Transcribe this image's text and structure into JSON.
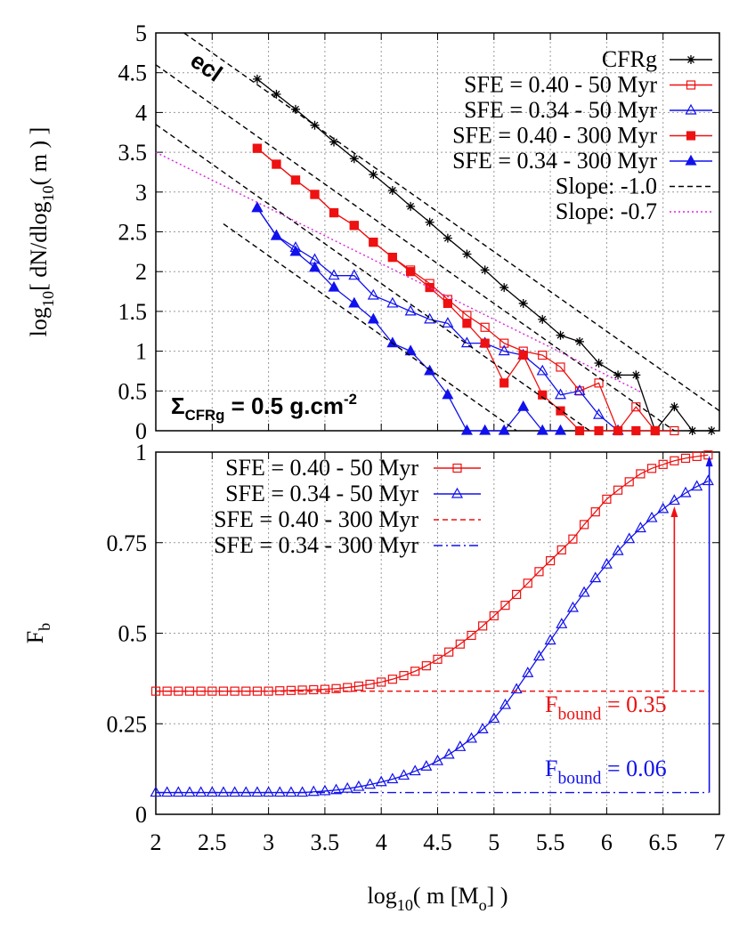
{
  "chart_data": [
    {
      "type": "line",
      "ylabel": [
        {
          "text": "log"
        },
        {
          "text": "10",
          "shift": "sub"
        },
        {
          "text": "[ dN/dlog"
        },
        {
          "text": "10",
          "shift": "sub"
        },
        {
          "text": "( m ) ]"
        }
      ],
      "xlim": [
        2,
        7
      ],
      "xticks": [
        2,
        2.5,
        3,
        3.5,
        4,
        4.5,
        5,
        5.5,
        6,
        6.5,
        7
      ],
      "ylim": [
        0,
        5
      ],
      "yticks": [
        0,
        0.5,
        1,
        1.5,
        2,
        2.5,
        3,
        3.5,
        4,
        4.5,
        5
      ],
      "grid": true,
      "legend": "upper right",
      "annotations": [
        {
          "parts": [
            {
              "text": "ecl"
            }
          ],
          "color": "#000000"
        },
        {
          "parts": [
            {
              "text": "Σ"
            },
            {
              "text": "CFRg",
              "shift": "sub"
            },
            {
              "text": " = 0.5 g.cm"
            },
            {
              "text": "-2",
              "shift": "super"
            }
          ],
          "color": "#000000"
        }
      ],
      "series": [
        {
          "name": "CFRg",
          "color": "#000000",
          "marker": "star",
          "dash": "solid",
          "x": [
            2.9,
            3.07,
            3.24,
            3.41,
            3.58,
            3.76,
            3.93,
            4.1,
            4.26,
            4.43,
            4.59,
            4.76,
            4.92,
            5.09,
            5.26,
            5.43,
            5.59,
            5.76,
            5.93,
            6.1,
            6.26,
            6.43,
            6.6,
            6.76,
            6.93
          ],
          "values": [
            4.42,
            4.23,
            4.04,
            3.84,
            3.63,
            3.42,
            3.22,
            3.02,
            2.82,
            2.62,
            2.42,
            2.22,
            2.02,
            1.8,
            1.6,
            1.4,
            1.2,
            1.12,
            0.85,
            0.7,
            0.7,
            0,
            0.3,
            0,
            0
          ]
        },
        {
          "name": "SFE = 0.40 - 50 Myr",
          "color": "#ee1111",
          "marker": "square-open",
          "dash": "solid",
          "x": [
            2.9,
            3.07,
            3.24,
            3.41,
            3.58,
            3.76,
            3.93,
            4.1,
            4.26,
            4.43,
            4.59,
            4.76,
            4.92,
            5.09,
            5.26,
            5.43,
            5.59,
            5.76,
            5.93,
            6.1,
            6.26,
            6.43,
            6.6
          ],
          "values": [
            3.55,
            3.35,
            3.15,
            2.97,
            2.74,
            2.58,
            2.37,
            2.18,
            2.02,
            1.85,
            1.65,
            1.45,
            1.3,
            1.1,
            1.0,
            0.95,
            0.8,
            0.5,
            0.6,
            0,
            0.3,
            0,
            0
          ]
        },
        {
          "name": "SFE = 0.34 - 50 Myr",
          "color": "#1111ee",
          "marker": "triangle-open",
          "dash": "solid",
          "x": [
            2.9,
            3.07,
            3.24,
            3.41,
            3.58,
            3.76,
            3.93,
            4.1,
            4.26,
            4.43,
            4.59,
            4.76,
            4.92,
            5.09,
            5.26,
            5.43,
            5.59,
            5.76,
            5.93,
            6.1
          ],
          "values": [
            2.8,
            2.45,
            2.3,
            2.15,
            1.95,
            1.95,
            1.7,
            1.6,
            1.5,
            1.4,
            1.35,
            1.1,
            1.1,
            1.0,
            0.95,
            0.75,
            0.45,
            0.5,
            0.2,
            0
          ]
        },
        {
          "name": "SFE = 0.40 - 300 Myr",
          "color": "#ee1111",
          "marker": "square",
          "dash": "solid",
          "x": [
            2.9,
            3.07,
            3.24,
            3.41,
            3.58,
            3.76,
            3.93,
            4.1,
            4.26,
            4.43,
            4.59,
            4.76,
            4.92,
            5.09,
            5.26,
            5.43,
            5.59,
            5.76,
            5.93,
            6.1,
            6.26,
            6.43
          ],
          "values": [
            3.55,
            3.35,
            3.15,
            2.97,
            2.74,
            2.58,
            2.37,
            2.18,
            2.0,
            1.8,
            1.6,
            1.35,
            1.1,
            0.6,
            0.95,
            0.45,
            0.25,
            0,
            0,
            0,
            0,
            0
          ]
        },
        {
          "name": "SFE = 0.34 - 300 Myr",
          "color": "#1111ee",
          "marker": "triangle",
          "dash": "solid",
          "x": [
            2.9,
            3.07,
            3.24,
            3.41,
            3.58,
            3.76,
            3.93,
            4.1,
            4.26,
            4.43,
            4.59,
            4.76,
            4.92,
            5.09,
            5.26,
            5.43,
            5.59
          ],
          "values": [
            2.8,
            2.45,
            2.25,
            2.05,
            1.8,
            1.6,
            1.4,
            1.1,
            1.0,
            0.75,
            0.45,
            0,
            0,
            0,
            0.3,
            0,
            0
          ]
        },
        {
          "name": "Slope: -1.0",
          "color": "#000000",
          "marker": "none",
          "dash": "dashed",
          "x": [
            2.25,
            7,
            null,
            2,
            6.6,
            null,
            2,
            5.85,
            null,
            2.6,
            5.2
          ],
          "values": [
            5,
            0.25,
            null,
            4.6,
            0,
            null,
            3.85,
            0,
            null,
            2.6,
            0
          ]
        },
        {
          "name": "Slope: -0.7",
          "color": "#dd22dd",
          "marker": "none",
          "dash": "dotted",
          "x": [
            2,
            6.3
          ],
          "values": [
            3.5,
            0.49
          ]
        }
      ]
    },
    {
      "type": "line",
      "xlabel": [
        {
          "text": "log"
        },
        {
          "text": "10",
          "shift": "sub"
        },
        {
          "text": "( m [M"
        },
        {
          "text": "o",
          "shift": "sub"
        },
        {
          "text": "] )"
        }
      ],
      "ylabel": [
        {
          "text": "F"
        },
        {
          "text": "b",
          "shift": "sub"
        }
      ],
      "xlim": [
        2,
        7
      ],
      "xticks": [
        2,
        2.5,
        3,
        3.5,
        4,
        4.5,
        5,
        5.5,
        6,
        6.5,
        7
      ],
      "ylim": [
        0,
        1
      ],
      "yticks": [
        0,
        0.25,
        0.5,
        0.75,
        1
      ],
      "grid": true,
      "legend": "upper left",
      "annotations": [
        {
          "parts": [
            {
              "text": "F"
            },
            {
              "text": "bound",
              "shift": "sub"
            },
            {
              "text": " = 0.35"
            }
          ],
          "color": "#ee1111"
        },
        {
          "parts": [
            {
              "text": "F"
            },
            {
              "text": "bound",
              "shift": "sub"
            },
            {
              "text": " = 0.06"
            }
          ],
          "color": "#1111ee"
        }
      ],
      "arrows": [
        {
          "x": 6.6,
          "from": 0.34,
          "to": 0.85,
          "color": "#ee1111"
        },
        {
          "x": 6.91,
          "from": 0.06,
          "to": 0.99,
          "color": "#1111ee"
        }
      ],
      "series": [
        {
          "name": "SFE = 0.40 - 50 Myr",
          "color": "#ee1111",
          "marker": "square-open",
          "dash": "solid",
          "x": [
            2.0,
            2.1,
            2.2,
            2.3,
            2.4,
            2.5,
            2.6,
            2.7,
            2.8,
            2.9,
            3.0,
            3.1,
            3.2,
            3.3,
            3.4,
            3.5,
            3.6,
            3.7,
            3.8,
            3.9,
            4.0,
            4.1,
            4.2,
            4.3,
            4.4,
            4.5,
            4.6,
            4.7,
            4.8,
            4.9,
            5.0,
            5.1,
            5.2,
            5.3,
            5.4,
            5.5,
            5.6,
            5.7,
            5.8,
            5.9,
            6.0,
            6.1,
            6.2,
            6.3,
            6.4,
            6.5,
            6.6,
            6.7,
            6.8,
            6.9
          ],
          "values": [
            0.34,
            0.34,
            0.34,
            0.34,
            0.34,
            0.34,
            0.34,
            0.34,
            0.34,
            0.34,
            0.34,
            0.341,
            0.342,
            0.343,
            0.344,
            0.345,
            0.347,
            0.35,
            0.354,
            0.359,
            0.365,
            0.373,
            0.383,
            0.395,
            0.41,
            0.428,
            0.448,
            0.47,
            0.494,
            0.52,
            0.548,
            0.577,
            0.607,
            0.638,
            0.67,
            0.7,
            0.73,
            0.76,
            0.8,
            0.835,
            0.87,
            0.895,
            0.918,
            0.94,
            0.955,
            0.966,
            0.976,
            0.983,
            0.988,
            0.992
          ]
        },
        {
          "name": "SFE = 0.34 - 50 Myr",
          "color": "#1111ee",
          "marker": "triangle-open",
          "dash": "solid",
          "x": [
            2.0,
            2.1,
            2.2,
            2.3,
            2.4,
            2.5,
            2.6,
            2.7,
            2.8,
            2.9,
            3.0,
            3.1,
            3.2,
            3.3,
            3.4,
            3.5,
            3.6,
            3.7,
            3.8,
            3.9,
            4.0,
            4.1,
            4.2,
            4.3,
            4.4,
            4.5,
            4.6,
            4.7,
            4.8,
            4.9,
            5.0,
            5.1,
            5.2,
            5.3,
            5.4,
            5.5,
            5.6,
            5.7,
            5.8,
            5.9,
            6.0,
            6.1,
            6.2,
            6.3,
            6.4,
            6.5,
            6.6,
            6.7,
            6.8,
            6.9
          ],
          "values": [
            0.06,
            0.06,
            0.06,
            0.06,
            0.06,
            0.06,
            0.06,
            0.06,
            0.06,
            0.06,
            0.06,
            0.06,
            0.06,
            0.06,
            0.062,
            0.064,
            0.067,
            0.071,
            0.076,
            0.082,
            0.089,
            0.097,
            0.107,
            0.119,
            0.132,
            0.147,
            0.165,
            0.186,
            0.209,
            0.235,
            0.264,
            0.302,
            0.345,
            0.39,
            0.436,
            0.48,
            0.525,
            0.57,
            0.612,
            0.652,
            0.69,
            0.727,
            0.76,
            0.79,
            0.818,
            0.843,
            0.866,
            0.887,
            0.905,
            0.92
          ]
        },
        {
          "name": "SFE = 0.40 - 300 Myr",
          "color": "#ee1111",
          "marker": "none",
          "dash": "dashed",
          "x": [
            2,
            6.9
          ],
          "values": [
            0.34,
            0.34
          ]
        },
        {
          "name": "SFE = 0.34 - 300 Myr",
          "color": "#1111ee",
          "marker": "none",
          "dash": "dashdot",
          "x": [
            2,
            6.9
          ],
          "values": [
            0.06,
            0.06
          ]
        }
      ]
    }
  ]
}
